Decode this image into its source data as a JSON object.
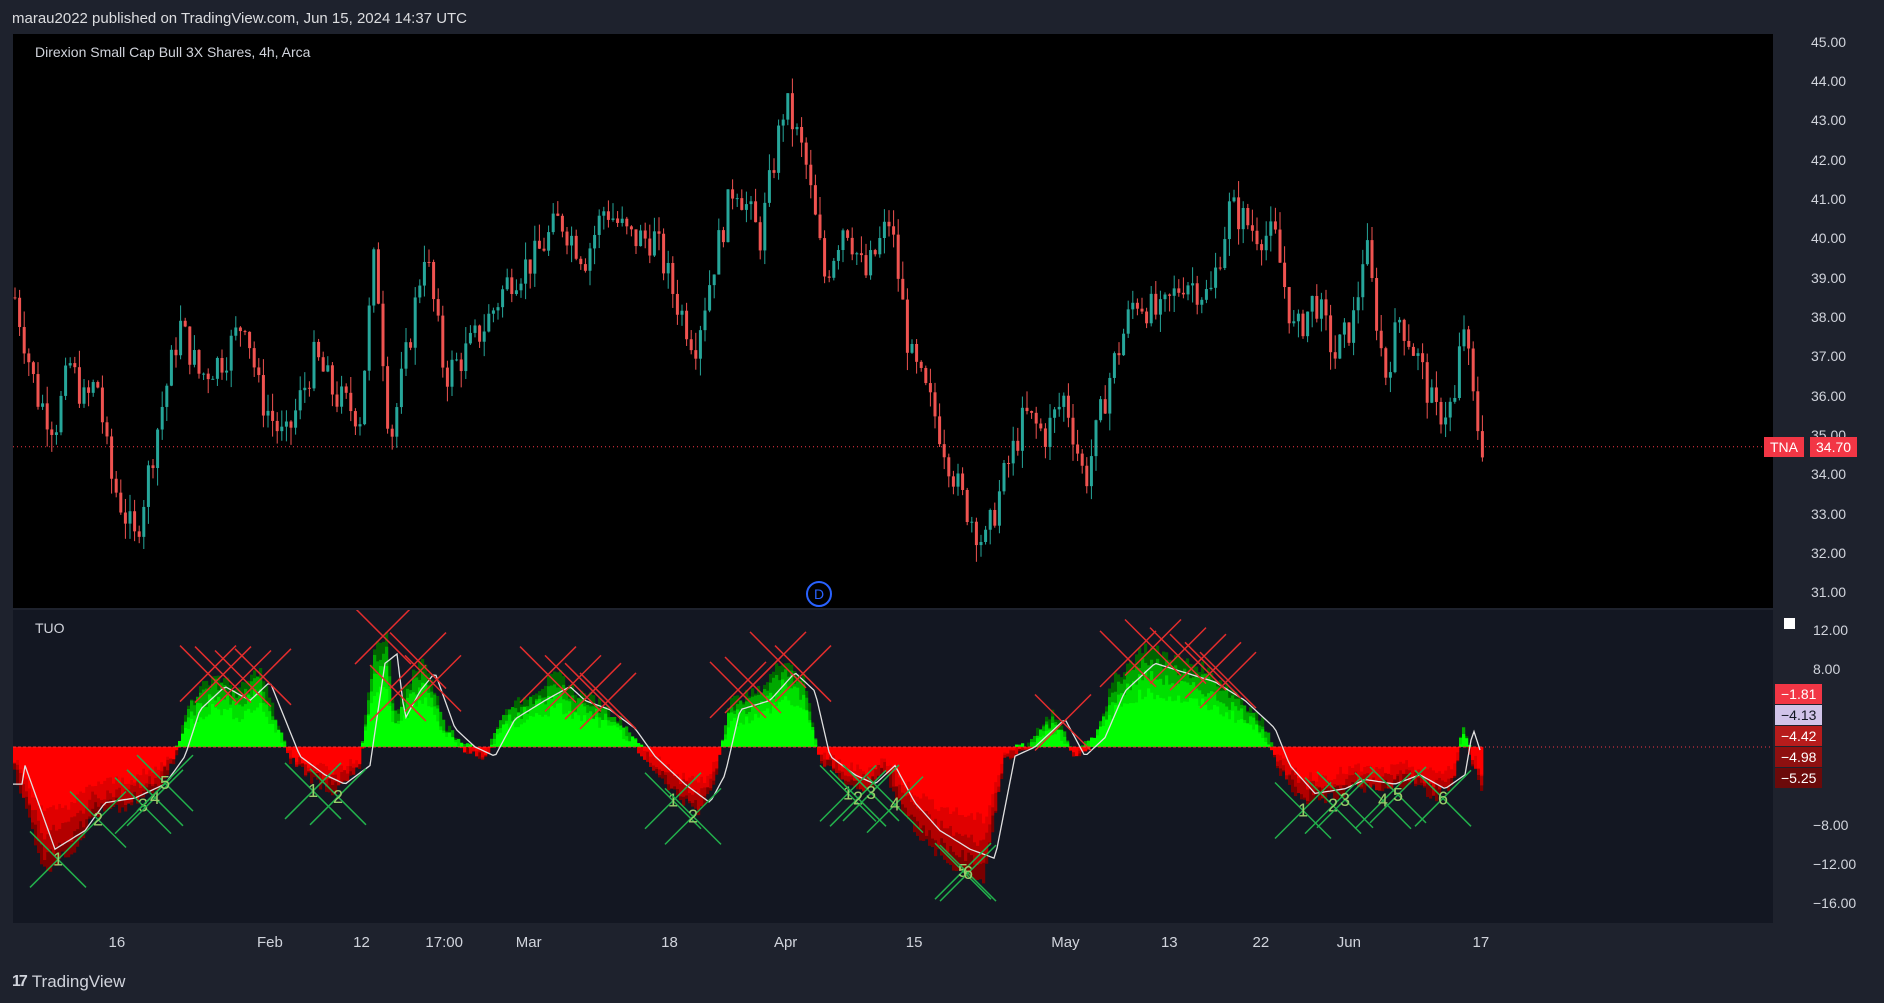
{
  "header": {
    "published": "marau2022 published on TradingView.com, Jun 15, 2024 14:37 UTC"
  },
  "price_pane": {
    "title": "Direxion Small Cap Bull 3X Shares, 4h, Arca",
    "ticker_label": "TNA",
    "last_price": "34.70",
    "dividend_marker": "D"
  },
  "indicator_pane": {
    "title": "TUO",
    "tags": [
      {
        "text": "−1.81",
        "bg": "#f23645",
        "fg": "#ffffff"
      },
      {
        "text": "−4.13",
        "bg": "#d1c4e9",
        "fg": "#131722"
      },
      {
        "text": "−4.42",
        "bg": "#b71c1c",
        "fg": "#ffffff"
      },
      {
        "text": "−4.98",
        "bg": "#8e1010",
        "fg": "#ffffff"
      },
      {
        "text": "−5.25",
        "bg": "#6b0a0a",
        "fg": "#ffffff"
      }
    ]
  },
  "colors": {
    "up": "#26a69a",
    "down": "#ef5350",
    "green": "#00ff00",
    "red": "#ff0000",
    "cross_red": "#e32d2d",
    "cross_green": "#22b14c"
  },
  "footer": {
    "brand": "TradingView"
  },
  "chart_data": [
    {
      "type": "candlestick",
      "title": "Direxion Small Cap Bull 3X Shares, 4h, Arca",
      "ylim": [
        30.6,
        45.2
      ],
      "y_ticks": [
        "45.00",
        "44.00",
        "43.00",
        "42.00",
        "41.00",
        "40.00",
        "39.00",
        "38.00",
        "37.00",
        "36.00",
        "35.00",
        "34.00",
        "33.00",
        "32.00",
        "31.00"
      ],
      "last_price": 34.7,
      "price_path_keypoints": [
        [
          0,
          38.5
        ],
        [
          22,
          36.0
        ],
        [
          40,
          35.2
        ],
        [
          55,
          36.8
        ],
        [
          70,
          35.8
        ],
        [
          82,
          36.4
        ],
        [
          95,
          34.0
        ],
        [
          120,
          32.3
        ],
        [
          145,
          35.5
        ],
        [
          165,
          37.8
        ],
        [
          185,
          36.5
        ],
        [
          210,
          37.0
        ],
        [
          230,
          38.0
        ],
        [
          245,
          36.0
        ],
        [
          270,
          34.8
        ],
        [
          300,
          37.0
        ],
        [
          320,
          36.0
        ],
        [
          345,
          35.5
        ],
        [
          360,
          39.7
        ],
        [
          375,
          34.8
        ],
        [
          395,
          37.5
        ],
        [
          410,
          39.8
        ],
        [
          430,
          36.5
        ],
        [
          448,
          37.0
        ],
        [
          470,
          37.8
        ],
        [
          495,
          39.0
        ],
        [
          520,
          39.5
        ],
        [
          545,
          40.5
        ],
        [
          570,
          39.5
        ],
        [
          590,
          40.8
        ],
        [
          615,
          40.0
        ],
        [
          640,
          40.0
        ],
        [
          660,
          38.5
        ],
        [
          680,
          37.3
        ],
        [
          700,
          39.5
        ],
        [
          720,
          41.5
        ],
        [
          745,
          40.0
        ],
        [
          770,
          43.5
        ],
        [
          790,
          42.0
        ],
        [
          810,
          39.0
        ],
        [
          830,
          40.5
        ],
        [
          850,
          39.0
        ],
        [
          875,
          40.5
        ],
        [
          895,
          37.0
        ],
        [
          920,
          35.5
        ],
        [
          945,
          33.5
        ],
        [
          970,
          32.2
        ],
        [
          990,
          34.0
        ],
        [
          1010,
          35.5
        ],
        [
          1030,
          35.0
        ],
        [
          1050,
          36.0
        ],
        [
          1070,
          33.8
        ],
        [
          1095,
          36.5
        ],
        [
          1120,
          38.5
        ],
        [
          1145,
          38.0
        ],
        [
          1170,
          39.0
        ],
        [
          1195,
          38.5
        ],
        [
          1215,
          40.8
        ],
        [
          1240,
          40.2
        ],
        [
          1260,
          40.0
        ],
        [
          1280,
          37.5
        ],
        [
          1300,
          38.5
        ],
        [
          1320,
          37.0
        ],
        [
          1340,
          38.0
        ],
        [
          1350,
          40.0
        ],
        [
          1370,
          36.5
        ],
        [
          1385,
          38.0
        ],
        [
          1405,
          36.8
        ],
        [
          1420,
          35.5
        ],
        [
          1440,
          35.8
        ],
        [
          1448,
          38.0
        ],
        [
          1460,
          35.5
        ],
        [
          1468,
          34.7
        ]
      ]
    },
    {
      "type": "area",
      "title": "TUO",
      "ylim": [
        -18,
        14
      ],
      "y_ticks": [
        "12.00",
        "8.00",
        "−8.00",
        "−12.00",
        "−16.00"
      ],
      "oscillator_keypoints": [
        [
          0,
          -2
        ],
        [
          30,
          -11
        ],
        [
          60,
          -9
        ],
        [
          80,
          -6
        ],
        [
          110,
          -5.5
        ],
        [
          140,
          -4
        ],
        [
          160,
          -1
        ],
        [
          175,
          4
        ],
        [
          200,
          6.5
        ],
        [
          225,
          5
        ],
        [
          245,
          7
        ],
        [
          260,
          3
        ],
        [
          275,
          -1
        ],
        [
          300,
          -3
        ],
        [
          320,
          -4
        ],
        [
          345,
          -2
        ],
        [
          360,
          9
        ],
        [
          372,
          10
        ],
        [
          380,
          3
        ],
        [
          395,
          6
        ],
        [
          410,
          8
        ],
        [
          430,
          2
        ],
        [
          450,
          0
        ],
        [
          470,
          -1
        ],
        [
          490,
          3
        ],
        [
          520,
          5
        ],
        [
          545,
          6.5
        ],
        [
          560,
          5
        ],
        [
          585,
          4
        ],
        [
          610,
          2
        ],
        [
          630,
          -1
        ],
        [
          660,
          -4
        ],
        [
          685,
          -6
        ],
        [
          700,
          -3
        ],
        [
          715,
          4
        ],
        [
          745,
          5
        ],
        [
          770,
          8
        ],
        [
          790,
          6
        ],
        [
          805,
          -1
        ],
        [
          830,
          -3
        ],
        [
          850,
          -4
        ],
        [
          870,
          -2
        ],
        [
          890,
          -6
        ],
        [
          915,
          -9
        ],
        [
          945,
          -11
        ],
        [
          970,
          -12
        ],
        [
          990,
          -1
        ],
        [
          1010,
          0
        ],
        [
          1040,
          3
        ],
        [
          1060,
          -1
        ],
        [
          1080,
          1
        ],
        [
          1100,
          6
        ],
        [
          1130,
          9
        ],
        [
          1160,
          8
        ],
        [
          1190,
          7
        ],
        [
          1220,
          5
        ],
        [
          1250,
          2
        ],
        [
          1265,
          -2
        ],
        [
          1290,
          -5
        ],
        [
          1320,
          -4.5
        ],
        [
          1340,
          -3.5
        ],
        [
          1370,
          -4
        ],
        [
          1395,
          -3
        ],
        [
          1420,
          -4.5
        ],
        [
          1440,
          -3
        ],
        [
          1448,
          2
        ],
        [
          1460,
          -2
        ],
        [
          1468,
          -4
        ]
      ],
      "markers_red": [
        [
          195,
          1
        ],
        [
          210,
          1
        ],
        [
          230,
          1
        ],
        [
          250,
          1
        ],
        [
          370,
          1
        ],
        [
          385,
          1
        ],
        [
          405,
          1
        ],
        [
          420,
          1
        ],
        [
          535,
          1
        ],
        [
          560,
          1
        ],
        [
          580,
          1
        ],
        [
          595,
          1
        ],
        [
          725,
          1
        ],
        [
          740,
          1
        ],
        [
          765,
          1
        ],
        [
          790,
          1
        ],
        [
          1050,
          1
        ],
        [
          1115,
          1
        ],
        [
          1140,
          1
        ],
        [
          1165,
          1
        ],
        [
          1185,
          1
        ],
        [
          1200,
          1
        ],
        [
          1215,
          1
        ]
      ],
      "markers_green": [
        [
          "1",
          45
        ],
        [
          "2",
          85
        ],
        [
          "3",
          130
        ],
        [
          "4",
          142
        ],
        [
          "5",
          152
        ],
        [
          "1",
          300
        ],
        [
          "2",
          325
        ],
        [
          "1",
          660
        ],
        [
          "2",
          680
        ],
        [
          "1",
          835
        ],
        [
          "2",
          845
        ],
        [
          "3",
          858
        ],
        [
          "4",
          882
        ],
        [
          "5",
          950
        ],
        [
          "6",
          955
        ],
        [
          "1",
          1290
        ],
        [
          "2",
          1320
        ],
        [
          "3",
          1332
        ],
        [
          "4",
          1370
        ],
        [
          "5",
          1385
        ],
        [
          "6",
          1430
        ]
      ]
    }
  ],
  "x_axis": {
    "labels": [
      {
        "text": "16",
        "x": 0.059
      },
      {
        "text": "Feb",
        "x": 0.146
      },
      {
        "text": "12",
        "x": 0.198
      },
      {
        "text": "17:00",
        "x": 0.245
      },
      {
        "text": "Mar",
        "x": 0.293
      },
      {
        "text": "18",
        "x": 0.373
      },
      {
        "text": "Apr",
        "x": 0.439
      },
      {
        "text": "15",
        "x": 0.512
      },
      {
        "text": "May",
        "x": 0.598
      },
      {
        "text": "13",
        "x": 0.657
      },
      {
        "text": "22",
        "x": 0.709
      },
      {
        "text": "Jun",
        "x": 0.759
      },
      {
        "text": "17",
        "x": 0.834
      }
    ]
  }
}
